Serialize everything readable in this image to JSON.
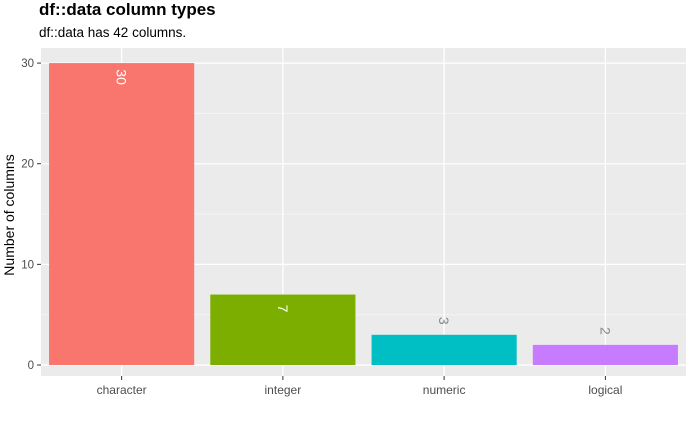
{
  "chart_data": {
    "type": "bar",
    "title": "df::data column types",
    "subtitle": "df::data has 42 columns.",
    "xlabel": "",
    "ylabel": "Number of columns",
    "categories": [
      "character",
      "integer",
      "numeric",
      "logical"
    ],
    "values": [
      30,
      7,
      3,
      2
    ],
    "data_labels": [
      "30",
      "7",
      "3",
      "2"
    ],
    "colors": [
      "#F8766D",
      "#7CAE00",
      "#00BFC4",
      "#C77CFF"
    ],
    "y_ticks": [
      "0",
      "10",
      "20",
      "30"
    ],
    "ylim": [
      0,
      31.5
    ],
    "grid": true,
    "legend": "none",
    "panel_color": "#EBEBEB",
    "label_colors": {
      "inside_bar": "#ffffff",
      "above_bar": "#7f8c8d"
    }
  }
}
